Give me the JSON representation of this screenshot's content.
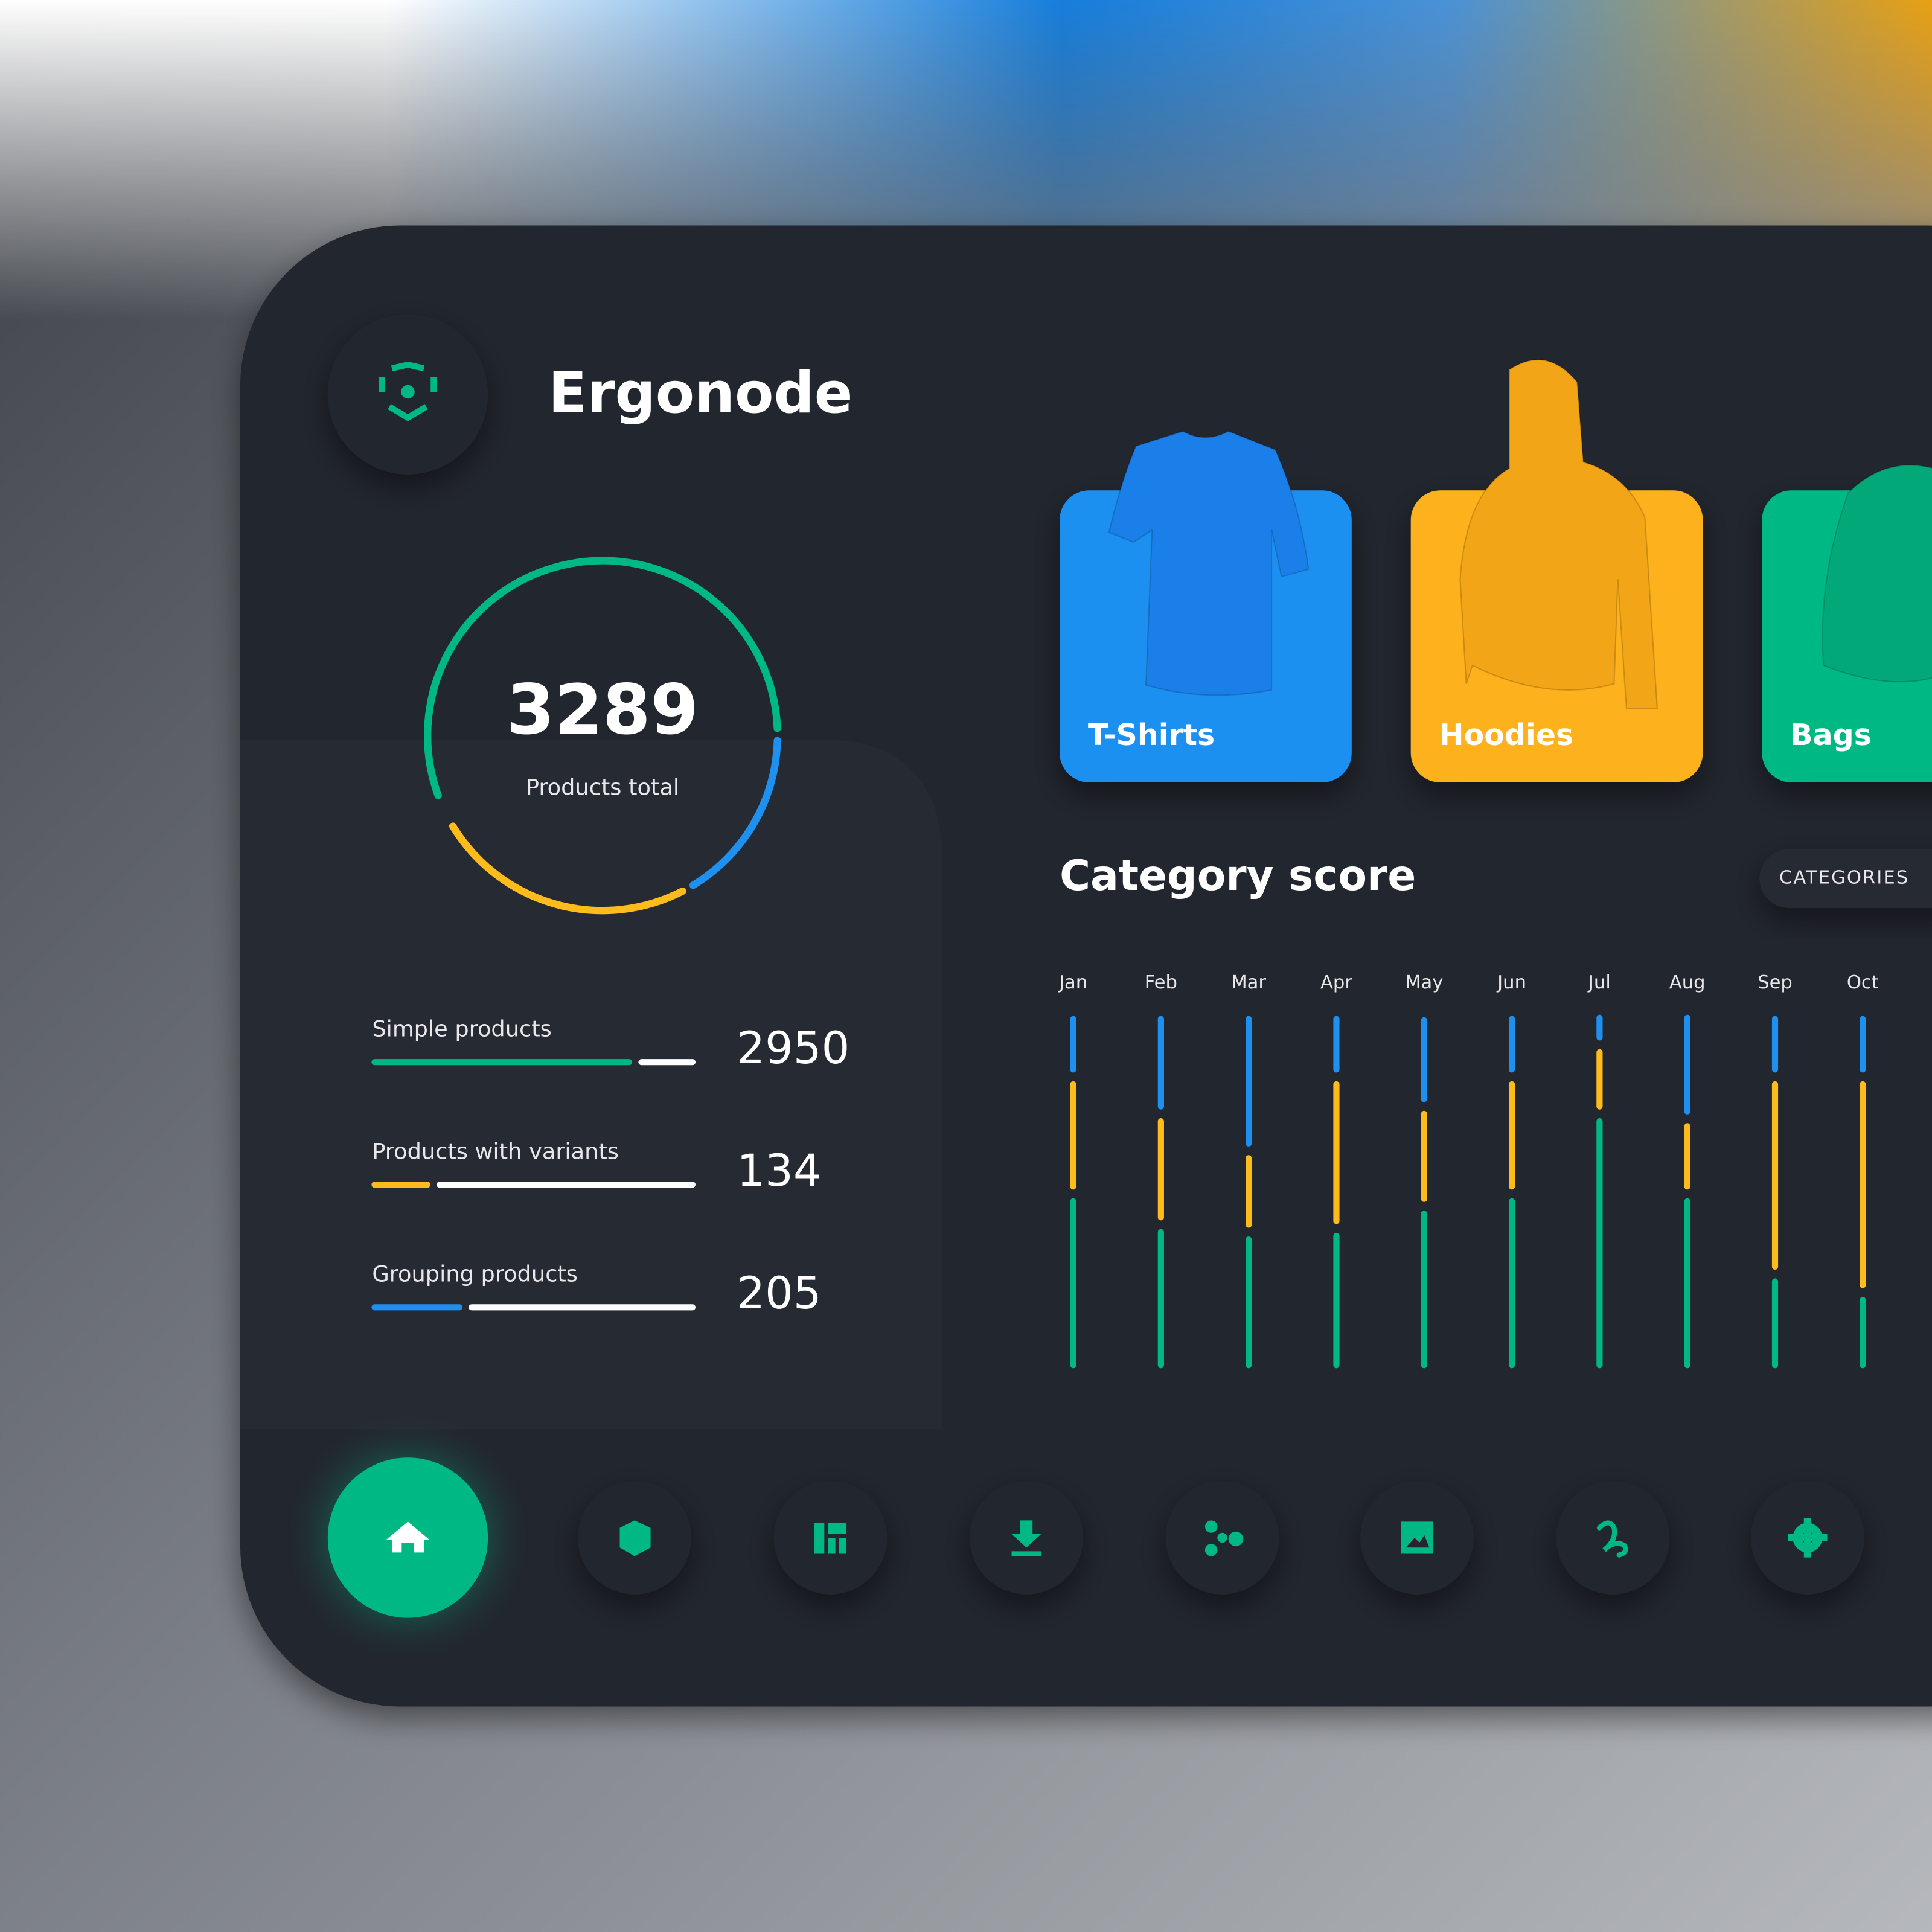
{
  "header": {
    "title": "Ergonode"
  },
  "products": {
    "total": 3289,
    "label": "Products total",
    "ring": {
      "values": [
        56,
        17,
        25
      ],
      "colors": [
        "#00b884",
        "#1e90f0",
        "#fdbc1c"
      ]
    }
  },
  "stats": [
    {
      "label": "Simple products",
      "value": 2950,
      "color": "#00b884",
      "fill": 81
    },
    {
      "label": "Products with variants",
      "value": 134,
      "color": "#fdbc1c",
      "fill": 18
    },
    {
      "label": "Grouping products",
      "value": 205,
      "color": "#1e90f0",
      "fill": 28
    }
  ],
  "cards": [
    {
      "label": "T-Shirts",
      "color": "#1e90f0"
    },
    {
      "label": "Hoodies",
      "color": "#fdb11e"
    },
    {
      "label": "Bags",
      "color": "#00b884"
    }
  ],
  "chart_data": {
    "type": "bar",
    "title": "Category score",
    "button": "CATEGORIES",
    "categories": [
      "Jan",
      "Feb",
      "Mar",
      "Apr",
      "May",
      "Jun",
      "Jul",
      "Aug",
      "Sep",
      "Oct"
    ],
    "series": [
      {
        "color": "#00b884",
        "values": [
          137,
          112,
          106,
          109,
          127,
          137,
          202,
          137,
          72,
          57
        ]
      },
      {
        "color": "#fdbc1c",
        "values": [
          87,
          82,
          58,
          115,
          73,
          87,
          48,
          53,
          152,
          167
        ]
      },
      {
        "color": "#1e90f0",
        "values": [
          45,
          75,
          105,
          45,
          68,
          45,
          20,
          80,
          45,
          45
        ]
      }
    ]
  }
}
